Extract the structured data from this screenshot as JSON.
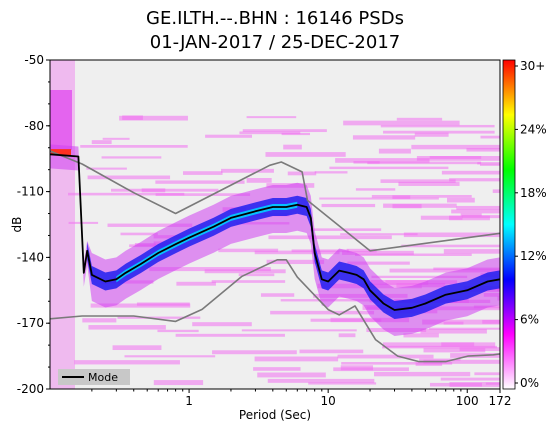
{
  "title_line1": "GE.ILTH.--.BHN : 16146 PSDs",
  "title_line2": "01-JAN-2017 / 25-DEC-2017",
  "chart_data": {
    "type": "heatmap",
    "title": "GE.ILTH.--.BHN : 16146 PSDs",
    "subtitle": "01-JAN-2017 / 25-DEC-2017",
    "xlabel": "Period (Sec)",
    "ylabel": "dB",
    "x_scale": "log",
    "xlim": [
      0.1,
      172
    ],
    "ylim": [
      -200,
      -50
    ],
    "x_ticks": [
      {
        "value": 1,
        "label": "1"
      },
      {
        "value": 10,
        "label": "10"
      },
      {
        "value": 100,
        "label": "100"
      },
      {
        "value": 172,
        "label": "172"
      }
    ],
    "y_ticks": [
      -50,
      -80,
      -110,
      -140,
      -170,
      -200
    ],
    "colorbar": {
      "ticks": [
        "0%",
        "6%",
        "12%",
        "18%",
        "24%",
        "30+"
      ],
      "colors": [
        "#ffffff",
        "#ff00ff",
        "#0000ff",
        "#00ffff",
        "#00ff00",
        "#ffff00",
        "#ff0000"
      ]
    },
    "legend": {
      "position": "bottom-left",
      "entries": [
        "Mode"
      ]
    },
    "series": [
      {
        "name": "Mode",
        "x": [
          0.1,
          0.16,
          0.175,
          0.185,
          0.2,
          0.25,
          0.3,
          0.35,
          0.45,
          0.6,
          0.8,
          1.0,
          1.5,
          2.0,
          3.0,
          4.0,
          5.0,
          6.0,
          7.0,
          7.5,
          8.0,
          9.0,
          10,
          12,
          14,
          16,
          18,
          20,
          25,
          30,
          40,
          50,
          70,
          100,
          140,
          172
        ],
        "y": [
          -93,
          -94,
          -147,
          -137,
          -148,
          -151,
          -150,
          -147,
          -143,
          -138,
          -134,
          -131,
          -126,
          -122,
          -119,
          -117,
          -117,
          -116,
          -117,
          -122,
          -138,
          -150,
          -151,
          -146,
          -147,
          -148,
          -150,
          -155,
          -161,
          -164,
          -163,
          -161,
          -157,
          -155,
          -151,
          -150
        ]
      },
      {
        "name": "High noise model",
        "x": [
          0.1,
          0.17,
          0.4,
          0.8,
          3.8,
          4.6,
          6.5,
          7.1,
          20,
          172
        ],
        "y": [
          -91.5,
          -97.4,
          -110.5,
          -120,
          -98,
          -96.5,
          -101,
          -114,
          -137,
          -129
        ]
      },
      {
        "name": "Low noise model",
        "x": [
          0.1,
          0.17,
          0.4,
          0.8,
          1.24,
          2.4,
          4.3,
          5.0,
          6.0,
          10,
          12,
          15.6,
          21.9,
          31.6,
          45,
          70,
          101,
          154,
          172
        ],
        "y": [
          -168,
          -166.7,
          -166.7,
          -169.2,
          -163.7,
          -148.6,
          -141.1,
          -141.1,
          -149,
          -163.8,
          -166.2,
          -162.1,
          -177.5,
          -185,
          -187.5,
          -187.5,
          -185,
          -184.4,
          -184
        ]
      }
    ]
  }
}
